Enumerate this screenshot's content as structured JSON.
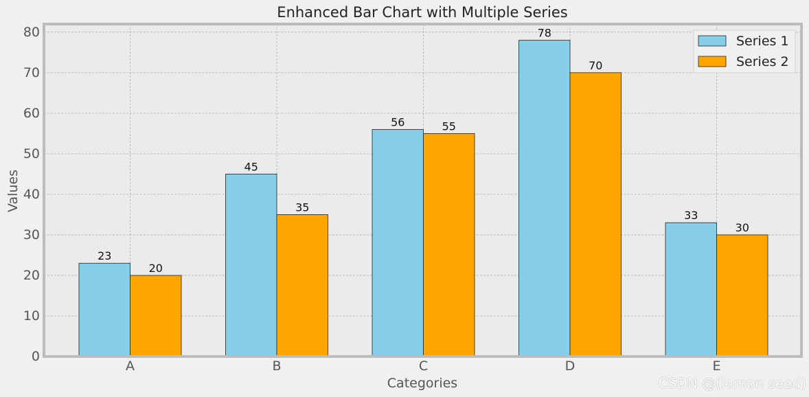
{
  "chart_data": {
    "type": "bar",
    "title": "Enhanced Bar Chart with Multiple Series",
    "xlabel": "Categories",
    "ylabel": "Values",
    "categories": [
      "A",
      "B",
      "C",
      "D",
      "E"
    ],
    "series": [
      {
        "name": "Series 1",
        "values": [
          23,
          45,
          56,
          78,
          33
        ],
        "color": "#87ceeb"
      },
      {
        "name": "Series 2",
        "values": [
          20,
          35,
          55,
          70,
          30
        ],
        "color": "#ffa500"
      }
    ],
    "ylim": [
      0,
      82
    ],
    "yticks": [
      0,
      10,
      20,
      30,
      40,
      50,
      60,
      70,
      80
    ],
    "grid": true,
    "legend_position": "top-right",
    "data_labels": true
  },
  "watermark": "CSDN @(lemon seed)"
}
